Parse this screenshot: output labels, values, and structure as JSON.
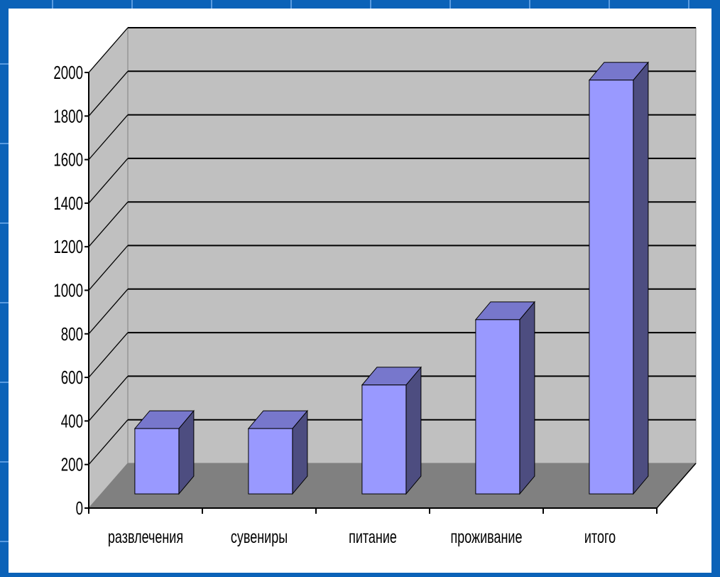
{
  "chart_data": {
    "type": "bar",
    "style": "3d-column",
    "title": "",
    "xlabel": "",
    "ylabel": "",
    "categories": [
      "развлечения",
      "сувениры",
      "питание",
      "проживание",
      "итого"
    ],
    "values": [
      300,
      300,
      500,
      800,
      1900
    ],
    "ylim": [
      0,
      2000
    ],
    "yticks": [
      0,
      200,
      400,
      600,
      800,
      1000,
      1200,
      1400,
      1600,
      1800,
      2000
    ],
    "grid": true,
    "legend": "none",
    "colors": {
      "bar_front": "#9999ff",
      "bar_top": "#7777cc",
      "bar_side": "#4d4d80",
      "back_wall": "#c0c0c0",
      "floor": "#808080",
      "frame_background": "#0b62b8"
    }
  }
}
